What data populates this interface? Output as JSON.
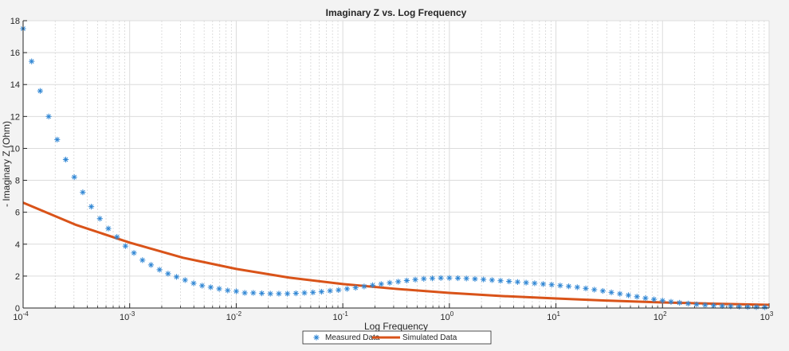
{
  "chart_data": {
    "type": "scatter+line",
    "title": "Imaginary Z vs. Log Frequency",
    "xlabel": "Log Frequency",
    "ylabel": "- Imaginary Z (Ohm)",
    "xscale": "log",
    "xlim": [
      0.0001,
      1000
    ],
    "ylim": [
      0,
      18
    ],
    "xticks": [
      0.0001,
      0.001,
      0.01,
      0.1,
      1,
      10,
      100,
      1000
    ],
    "xtick_labels": [
      {
        "base": "10",
        "exp": "-4"
      },
      {
        "base": "10",
        "exp": "-3"
      },
      {
        "base": "10",
        "exp": "-2"
      },
      {
        "base": "10",
        "exp": "-1"
      },
      {
        "base": "10",
        "exp": "0"
      },
      {
        "base": "10",
        "exp": "1"
      },
      {
        "base": "10",
        "exp": "2"
      },
      {
        "base": "10",
        "exp": "3"
      }
    ],
    "yticks": [
      0,
      2,
      4,
      6,
      8,
      10,
      12,
      14,
      16,
      18
    ],
    "ytick_labels": [
      "0",
      "2",
      "4",
      "6",
      "8",
      "10",
      "12",
      "14",
      "16",
      "18"
    ],
    "grid": true,
    "minor_grid": true,
    "legend_position": "bottom-outside",
    "series": [
      {
        "name": "Measured Data",
        "type": "scatter",
        "marker": "asterisk",
        "color": "#2f86d4",
        "x": [
          0.0001,
          0.0001202,
          0.0001445,
          0.0001738,
          0.0002089,
          0.0002512,
          0.000302,
          0.0003631,
          0.0004365,
          0.0005248,
          0.000631,
          0.0007586,
          0.000912,
          0.001096,
          0.001318,
          0.001585,
          0.001905,
          0.002291,
          0.002754,
          0.003311,
          0.003981,
          0.004786,
          0.005754,
          0.006918,
          0.008318,
          0.01,
          0.01202,
          0.01445,
          0.01738,
          0.02089,
          0.02512,
          0.0302,
          0.03631,
          0.04365,
          0.05248,
          0.0631,
          0.07586,
          0.0912,
          0.1096,
          0.1318,
          0.1585,
          0.1905,
          0.2291,
          0.2754,
          0.3311,
          0.3981,
          0.4786,
          0.5754,
          0.6918,
          0.8318,
          1,
          1.202,
          1.445,
          1.738,
          2.089,
          2.512,
          3.02,
          3.631,
          4.365,
          5.248,
          6.31,
          7.586,
          9.12,
          10.96,
          13.18,
          15.85,
          19.05,
          22.91,
          27.54,
          33.11,
          39.81,
          47.86,
          57.54,
          69.18,
          83.18,
          100,
          120.2,
          144.5,
          173.8,
          208.9,
          251.2,
          302,
          363.1,
          436.5,
          524.8,
          631,
          758.6,
          912
        ],
        "y": [
          17.5,
          15.45,
          13.6,
          12.0,
          10.55,
          9.3,
          8.2,
          7.25,
          6.35,
          5.6,
          4.98,
          4.45,
          3.88,
          3.45,
          3.0,
          2.7,
          2.4,
          2.15,
          1.95,
          1.75,
          1.55,
          1.4,
          1.3,
          1.2,
          1.1,
          1.05,
          0.95,
          0.95,
          0.92,
          0.9,
          0.9,
          0.9,
          0.92,
          0.95,
          0.98,
          1.02,
          1.08,
          1.13,
          1.2,
          1.27,
          1.35,
          1.43,
          1.5,
          1.58,
          1.65,
          1.72,
          1.78,
          1.83,
          1.86,
          1.88,
          1.88,
          1.87,
          1.85,
          1.82,
          1.79,
          1.75,
          1.71,
          1.67,
          1.63,
          1.59,
          1.55,
          1.5,
          1.46,
          1.41,
          1.36,
          1.3,
          1.23,
          1.15,
          1.07,
          0.98,
          0.89,
          0.8,
          0.71,
          0.62,
          0.54,
          0.46,
          0.39,
          0.33,
          0.28,
          0.23,
          0.19,
          0.16,
          0.13,
          0.11,
          0.09,
          0.07,
          0.06,
          0.05
        ]
      },
      {
        "name": "Simulated Data",
        "type": "line",
        "color": "#d95319",
        "x": [
          0.0001,
          0.000316,
          0.001,
          0.00316,
          0.01,
          0.0316,
          0.1,
          0.316,
          1,
          3.16,
          10,
          31.6,
          100,
          316,
          1000
        ],
        "y": [
          6.6,
          5.2,
          4.1,
          3.15,
          2.45,
          1.9,
          1.5,
          1.2,
          0.95,
          0.75,
          0.6,
          0.46,
          0.35,
          0.27,
          0.2
        ]
      }
    ]
  }
}
